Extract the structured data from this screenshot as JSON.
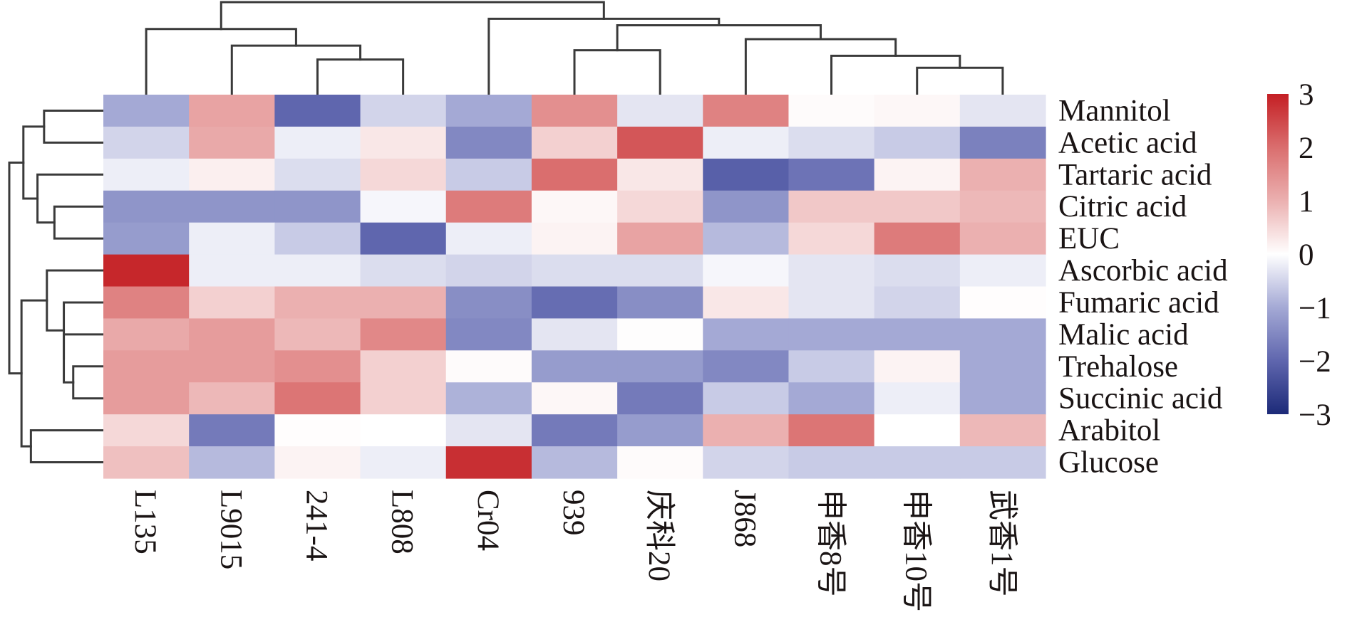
{
  "chart_data": {
    "type": "heatmap",
    "title": "",
    "xlabel": "",
    "ylabel": "",
    "columns": [
      "L135",
      "L9015",
      "241-4",
      "L808",
      "Cr04",
      "939",
      "庆科20",
      "J868",
      "申香8号",
      "申香10号",
      "武香1号"
    ],
    "rows": [
      "Mannitol",
      "Acetic acid",
      "Tartaric acid",
      "Citric acid",
      "EUC",
      "Ascorbic acid",
      "Fumaric acid",
      "Malic acid",
      "Trehalose",
      "Succinic acid",
      "Arabitol",
      "Glucose"
    ],
    "values": [
      [
        -1.0,
        1.2,
        -2.0,
        -0.5,
        -1.0,
        1.5,
        -0.3,
        1.7,
        0.05,
        0.1,
        -0.3
      ],
      [
        -0.5,
        1.1,
        -0.2,
        0.3,
        -1.5,
        0.6,
        2.3,
        -0.2,
        -0.4,
        -0.6,
        -1.6
      ],
      [
        -0.2,
        0.2,
        -0.4,
        0.5,
        -0.6,
        2.0,
        0.3,
        -2.1,
        -1.8,
        0.15,
        1.0
      ],
      [
        -1.3,
        -1.3,
        -1.3,
        -0.1,
        1.8,
        0.1,
        0.5,
        -1.3,
        0.7,
        0.7,
        0.9
      ],
      [
        -1.2,
        -0.2,
        -0.6,
        -2.0,
        -0.2,
        0.15,
        1.2,
        -0.8,
        0.5,
        1.8,
        1.0
      ],
      [
        2.9,
        -0.2,
        -0.2,
        -0.4,
        -0.5,
        -0.4,
        -0.4,
        -0.1,
        -0.3,
        -0.4,
        -0.2
      ],
      [
        1.7,
        0.6,
        1.0,
        1.0,
        -1.4,
        -1.9,
        -1.4,
        0.3,
        -0.3,
        -0.5,
        0.02
      ],
      [
        1.1,
        1.3,
        0.9,
        1.6,
        -1.5,
        -0.3,
        0.03,
        -1.0,
        -1.0,
        -1.0,
        -1.0
      ],
      [
        1.3,
        1.3,
        1.5,
        0.6,
        0.05,
        -1.2,
        -1.2,
        -1.5,
        -0.6,
        0.15,
        -1.0
      ],
      [
        1.3,
        0.9,
        1.9,
        0.6,
        -0.9,
        0.1,
        -1.7,
        -0.6,
        -1.0,
        -0.2,
        -1.0
      ],
      [
        0.5,
        -1.7,
        0.02,
        0.0,
        -0.3,
        -1.7,
        -1.2,
        1.0,
        1.9,
        0.0,
        0.9
      ],
      [
        0.8,
        -0.8,
        0.15,
        -0.2,
        2.8,
        -0.8,
        0.05,
        -0.5,
        -0.6,
        -0.6,
        -0.6
      ]
    ],
    "colorbar": {
      "range": [
        -3,
        3
      ],
      "ticks": [
        {
          "value": 3,
          "label": "3"
        },
        {
          "value": 2,
          "label": "2"
        },
        {
          "value": 1,
          "label": "1"
        },
        {
          "value": 0,
          "label": "0"
        },
        {
          "value": -1,
          "label": "−1"
        },
        {
          "value": -2,
          "label": "−2"
        },
        {
          "value": -3,
          "label": "−3"
        }
      ],
      "colormap": [
        {
          "value": -3,
          "color": "#1c2a78"
        },
        {
          "value": -2,
          "color": "#5f66ae"
        },
        {
          "value": -1,
          "color": "#a4a9d5"
        },
        {
          "value": 0,
          "color": "#ffffff"
        },
        {
          "value": 1,
          "color": "#ebb0b0"
        },
        {
          "value": 2,
          "color": "#da6e6e"
        },
        {
          "value": 3,
          "color": "#c41f24"
        }
      ]
    },
    "column_dendrogram": {
      "height": 1.0,
      "children": [
        {
          "height": 0.71,
          "children": [
            {
              "leaf": 0
            },
            {
              "height": 0.53,
              "children": [
                {
                  "leaf": 1
                },
                {
                  "height": 0.38,
                  "children": [
                    {
                      "leaf": 2
                    },
                    {
                      "leaf": 3
                    }
                  ]
                }
              ]
            }
          ]
        },
        {
          "height": 0.82,
          "children": [
            {
              "leaf": 4
            },
            {
              "height": 0.75,
              "children": [
                {
                  "height": 0.48,
                  "children": [
                    {
                      "leaf": 5
                    },
                    {
                      "leaf": 6
                    }
                  ]
                },
                {
                  "height": 0.6,
                  "children": [
                    {
                      "leaf": 7
                    },
                    {
                      "height": 0.42,
                      "children": [
                        {
                          "leaf": 8
                        },
                        {
                          "height": 0.29,
                          "children": [
                            {
                              "leaf": 9
                            },
                            {
                              "leaf": 10
                            }
                          ]
                        }
                      ]
                    }
                  ]
                }
              ]
            }
          ]
        }
      ]
    },
    "row_dendrogram": {
      "height": 1.0,
      "children": [
        {
          "height": 0.85,
          "children": [
            {
              "height": 0.63,
              "children": [
                {
                  "leaf": 0
                },
                {
                  "leaf": 1
                }
              ]
            },
            {
              "height": 0.7,
              "children": [
                {
                  "leaf": 2
                },
                {
                  "height": 0.52,
                  "children": [
                    {
                      "leaf": 3
                    },
                    {
                      "leaf": 4
                    }
                  ]
                }
              ]
            }
          ]
        },
        {
          "height": 0.87,
          "children": [
            {
              "height": 0.6,
              "children": [
                {
                  "leaf": 5
                },
                {
                  "height": 0.42,
                  "children": [
                    {
                      "leaf": 6
                    },
                    {
                      "height": 0.42,
                      "children": [
                        {
                          "leaf": 7
                        },
                        {
                          "height": 0.32,
                          "children": [
                            {
                              "leaf": 8
                            },
                            {
                              "leaf": 9
                            }
                          ]
                        }
                      ]
                    }
                  ]
                }
              ]
            },
            {
              "height": 0.77,
              "children": [
                {
                  "leaf": 10
                },
                {
                  "leaf": 11
                }
              ]
            }
          ]
        }
      ]
    }
  }
}
